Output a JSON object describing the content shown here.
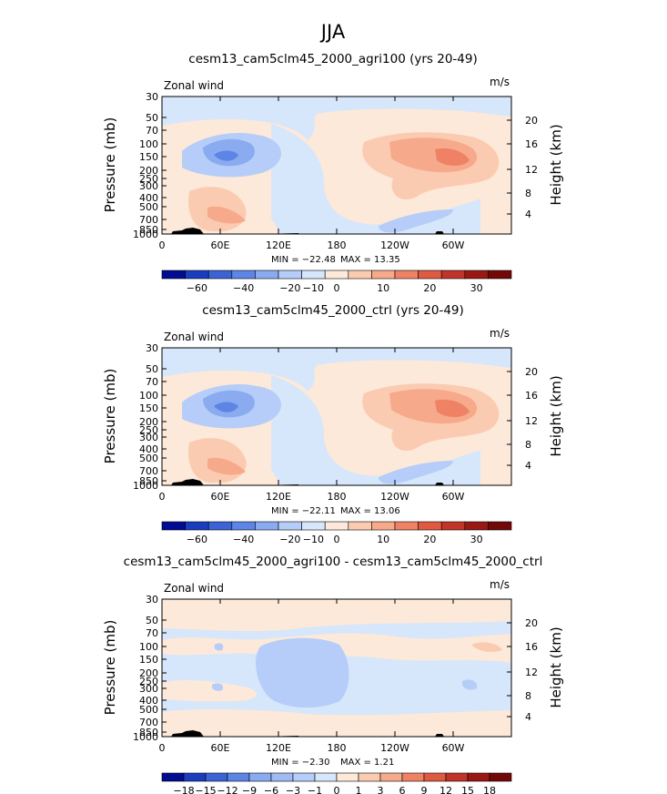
{
  "figure_title": "JJA",
  "chart_data": [
    {
      "type": "heatmap",
      "title": "cesm13_cam5clm45_2000_agri100 (yrs 20-49)",
      "left_label": "Zonal wind",
      "units": "m/s",
      "ylabel": "Pressure (mb)",
      "y2label": "Height (km)",
      "y_ticks": [
        "30",
        "50",
        "70",
        "100",
        "150",
        "200",
        "250",
        "300",
        "400",
        "500",
        "700",
        "850",
        "1000"
      ],
      "y2_ticks": [
        "20",
        "16",
        "12",
        "8",
        "4"
      ],
      "x_ticks": [
        "0",
        "60E",
        "120E",
        "180",
        "120W",
        "60W"
      ],
      "min_text": "MIN = −22.48",
      "max_text": "MAX =  13.35",
      "colorbar_labels": [
        "−60",
        "−40",
        "−20",
        "−10",
        "0",
        "10",
        "20",
        "30"
      ],
      "colorbar_colors": [
        "#000c91",
        "#1a3dbf",
        "#3b63d6",
        "#5c85e6",
        "#8aabf0",
        "#b5cdf8",
        "#d6e6fb",
        "#fde9d9",
        "#fbcbb1",
        "#f7a98b",
        "#ef8265",
        "#e05a41",
        "#c13429",
        "#9a1814",
        "#730808"
      ]
    },
    {
      "type": "heatmap",
      "title": "cesm13_cam5clm45_2000_ctrl (yrs 20-49)",
      "left_label": "Zonal wind",
      "units": "m/s",
      "ylabel": "Pressure (mb)",
      "y2label": "Height (km)",
      "y_ticks": [
        "30",
        "50",
        "70",
        "100",
        "150",
        "200",
        "250",
        "300",
        "400",
        "500",
        "700",
        "850",
        "1000"
      ],
      "y2_ticks": [
        "20",
        "16",
        "12",
        "8",
        "4"
      ],
      "x_ticks": [
        "0",
        "60E",
        "120E",
        "180",
        "120W",
        "60W"
      ],
      "min_text": "MIN = −22.11",
      "max_text": "MAX =  13.06",
      "colorbar_labels": [
        "−60",
        "−40",
        "−20",
        "−10",
        "0",
        "10",
        "20",
        "30"
      ],
      "colorbar_colors": [
        "#000c91",
        "#1a3dbf",
        "#3b63d6",
        "#5c85e6",
        "#8aabf0",
        "#b5cdf8",
        "#d6e6fb",
        "#fde9d9",
        "#fbcbb1",
        "#f7a98b",
        "#ef8265",
        "#e05a41",
        "#c13429",
        "#9a1814",
        "#730808"
      ]
    },
    {
      "type": "heatmap",
      "title": "cesm13_cam5clm45_2000_agri100 - cesm13_cam5clm45_2000_ctrl",
      "left_label": "Zonal wind",
      "units": "m/s",
      "ylabel": "Pressure (mb)",
      "y2label": "Height (km)",
      "y_ticks": [
        "30",
        "50",
        "70",
        "100",
        "150",
        "200",
        "250",
        "300",
        "400",
        "500",
        "700",
        "850",
        "1000"
      ],
      "y2_ticks": [
        "20",
        "16",
        "12",
        "8",
        "4"
      ],
      "x_ticks": [
        "0",
        "60E",
        "120E",
        "180",
        "120W",
        "60W"
      ],
      "min_text": "MIN =  −2.30",
      "max_text": "MAX =   1.21",
      "colorbar_labels": [
        "−18",
        "−15",
        "−12",
        "−9",
        "−6",
        "−3",
        "−1",
        "0",
        "1",
        "3",
        "6",
        "9",
        "12",
        "15",
        "18"
      ],
      "colorbar_colors": [
        "#000c91",
        "#1a3dbf",
        "#3b63d6",
        "#5c85e6",
        "#8aabf0",
        "#9fbbf4",
        "#b5cdf8",
        "#d6e6fb",
        "#fde9d9",
        "#fbcbb1",
        "#f7a98b",
        "#ef8265",
        "#e05a41",
        "#c13429",
        "#9a1814",
        "#730808"
      ]
    }
  ]
}
